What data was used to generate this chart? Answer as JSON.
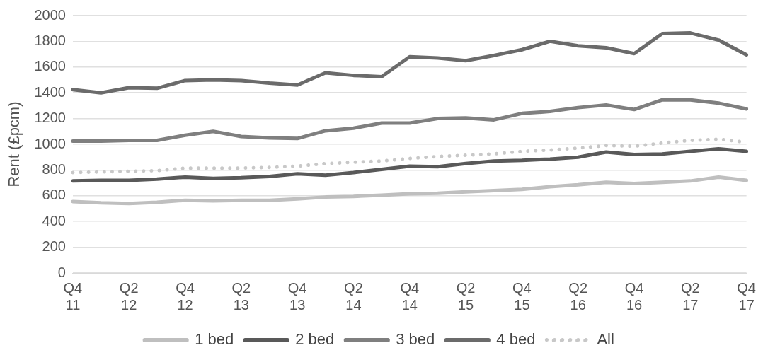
{
  "chart_data": {
    "type": "line",
    "ylabel": "Rent (£pcm)",
    "categories": [
      "Q4\n11",
      null,
      "Q2\n12",
      null,
      "Q4\n12",
      null,
      "Q2\n13",
      null,
      "Q4\n13",
      null,
      "Q2\n14",
      null,
      "Q4\n14",
      null,
      "Q2\n15",
      null,
      "Q4\n15",
      null,
      "Q2\n16",
      null,
      "Q4\n16",
      null,
      "Q2\n17",
      null,
      "Q4\n17"
    ],
    "series": [
      {
        "name": "1 bed",
        "color": "#bfbfbf",
        "line_style": "solid",
        "values": [
          555,
          545,
          540,
          550,
          565,
          560,
          565,
          565,
          575,
          590,
          595,
          605,
          615,
          620,
          630,
          640,
          650,
          670,
          685,
          705,
          695,
          705,
          715,
          745,
          720
        ]
      },
      {
        "name": "2 bed",
        "color": "#595959",
        "line_style": "solid",
        "values": [
          715,
          720,
          720,
          730,
          745,
          735,
          740,
          750,
          770,
          760,
          780,
          805,
          830,
          825,
          850,
          870,
          875,
          885,
          900,
          940,
          920,
          925,
          945,
          965,
          945
        ]
      },
      {
        "name": "3 bed",
        "color": "#7f7f7f",
        "line_style": "solid",
        "values": [
          1025,
          1025,
          1030,
          1030,
          1070,
          1100,
          1060,
          1050,
          1045,
          1105,
          1125,
          1165,
          1165,
          1200,
          1205,
          1190,
          1240,
          1255,
          1285,
          1305,
          1270,
          1345,
          1345,
          1320,
          1275
        ]
      },
      {
        "name": "4 bed",
        "color": "#6b6b6b",
        "line_style": "solid",
        "values": [
          1425,
          1400,
          1440,
          1435,
          1495,
          1500,
          1495,
          1475,
          1460,
          1555,
          1535,
          1525,
          1680,
          1670,
          1650,
          1690,
          1735,
          1800,
          1765,
          1750,
          1705,
          1860,
          1865,
          1810,
          1695
        ]
      },
      {
        "name": "All",
        "color": "#c8c8c8",
        "line_style": "dotted",
        "values": [
          780,
          785,
          790,
          795,
          815,
          815,
          815,
          820,
          830,
          850,
          860,
          870,
          890,
          905,
          915,
          925,
          945,
          955,
          970,
          990,
          985,
          1010,
          1030,
          1040,
          1015
        ]
      }
    ],
    "ylim": [
      0,
      2000
    ],
    "yticks": [
      0,
      200,
      400,
      600,
      800,
      1000,
      1200,
      1400,
      1600,
      1800,
      2000
    ],
    "grid": "y",
    "legend": "bottom",
    "marker": "none"
  }
}
